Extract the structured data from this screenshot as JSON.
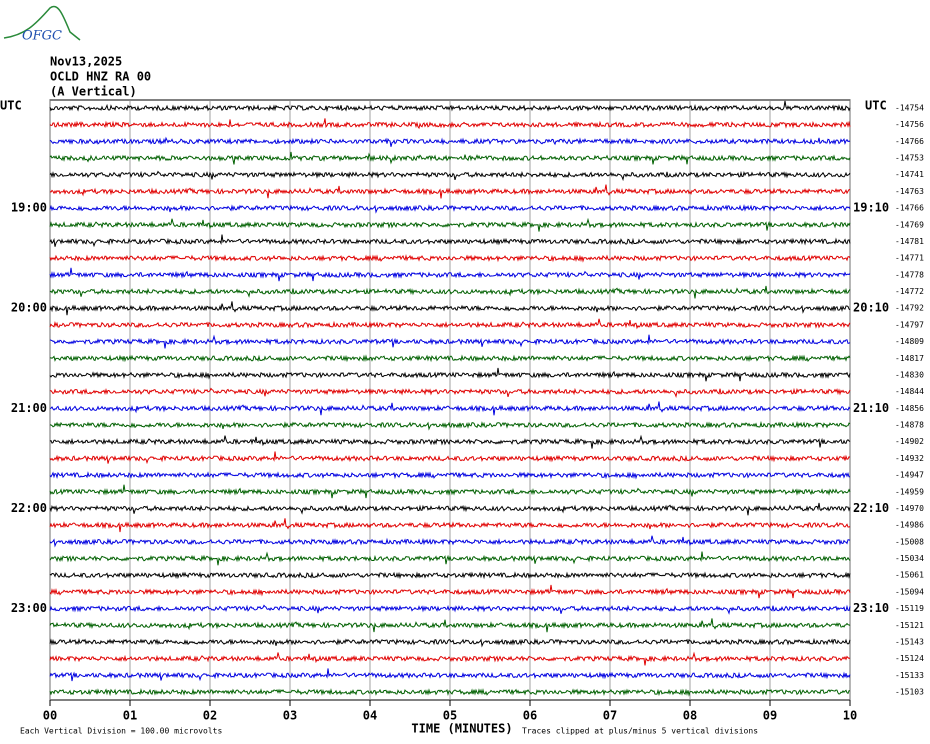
{
  "logo": "OFGC",
  "chart_data": {
    "type": "helicorder",
    "title_lines": [
      "Nov13,2025",
      "OCLD HNZ RA 00",
      "(A Vertical)"
    ],
    "left_labels": [
      "UTC",
      null,
      null,
      null,
      null,
      null,
      "19:00",
      null,
      null,
      null,
      null,
      null,
      "20:00",
      null,
      null,
      null,
      null,
      null,
      "21:00",
      null,
      null,
      null,
      null,
      null,
      "22:00",
      null,
      null,
      null,
      null,
      null,
      "23:00",
      null,
      null,
      null,
      null,
      null
    ],
    "right_labels": [
      "UTC",
      null,
      null,
      null,
      null,
      null,
      "19:10",
      null,
      null,
      null,
      null,
      null,
      "20:10",
      null,
      null,
      null,
      null,
      null,
      "21:10",
      null,
      null,
      null,
      null,
      null,
      "22:10",
      null,
      null,
      null,
      null,
      null,
      "23:10",
      null,
      null,
      null,
      null,
      null
    ],
    "offsets": [
      -14754,
      -14756,
      -14766,
      -14753,
      -14741,
      -14763,
      -14766,
      -14769,
      -14781,
      -14771,
      -14778,
      -14772,
      -14792,
      -14797,
      -14809,
      -14817,
      -14830,
      -14844,
      -14856,
      -14878,
      -14902,
      -14932,
      -14947,
      -14959,
      -14970,
      -14986,
      -15008,
      -15034,
      -15061,
      -15094,
      -15119,
      -15121,
      -15143,
      -15124,
      -15133,
      -15103
    ],
    "colors": [
      "#000000",
      "#e00000",
      "#0000e0",
      "#006000"
    ],
    "xlim": [
      0,
      10
    ],
    "xticks": [
      {
        "value": 0,
        "label": "00"
      },
      {
        "value": 1,
        "label": "01"
      },
      {
        "value": 2,
        "label": "02"
      },
      {
        "value": 3,
        "label": "03"
      },
      {
        "value": 4,
        "label": "04"
      },
      {
        "value": 5,
        "label": "05"
      },
      {
        "value": 6,
        "label": "06"
      },
      {
        "value": 7,
        "label": "07"
      },
      {
        "value": 8,
        "label": "08"
      },
      {
        "value": 9,
        "label": "09"
      },
      {
        "value": 10,
        "label": "10"
      }
    ],
    "x_label": "TIME (MINUTES)",
    "grid": true,
    "footer_left": "Each Vertical Division =  100.00 microvolts",
    "footer_right": "Traces clipped at plus/minus 5 vertical divisions"
  }
}
